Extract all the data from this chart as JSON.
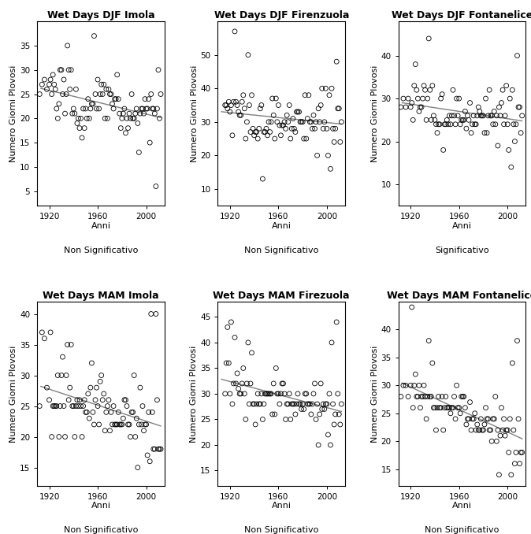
{
  "panels": [
    {
      "title": "Wet Days DJF Imola",
      "xlabel": "Anni",
      "ylabel": "Numero Giorni Plovosi",
      "significance": "Non Significativo",
      "ylim": [
        2,
        40
      ],
      "yticks": [
        5,
        10,
        15,
        20,
        25,
        30,
        35
      ],
      "xlim": [
        1910,
        2015
      ],
      "xticks": [
        1920,
        1960,
        2000
      ],
      "x": [
        1912,
        1914,
        1916,
        1918,
        1920,
        1921,
        1922,
        1923,
        1924,
        1925,
        1926,
        1927,
        1928,
        1929,
        1930,
        1931,
        1932,
        1933,
        1934,
        1935,
        1936,
        1937,
        1938,
        1939,
        1940,
        1941,
        1942,
        1943,
        1944,
        1945,
        1946,
        1947,
        1948,
        1949,
        1950,
        1951,
        1952,
        1953,
        1954,
        1955,
        1956,
        1957,
        1958,
        1959,
        1960,
        1961,
        1962,
        1963,
        1964,
        1965,
        1966,
        1967,
        1968,
        1969,
        1970,
        1971,
        1972,
        1973,
        1974,
        1975,
        1976,
        1977,
        1978,
        1979,
        1980,
        1981,
        1982,
        1983,
        1984,
        1985,
        1986,
        1987,
        1988,
        1989,
        1990,
        1991,
        1992,
        1993,
        1994,
        1995,
        1996,
        1997,
        1998,
        1999,
        2000,
        2001,
        2002,
        2003,
        2004,
        2005,
        2006,
        2007,
        2008,
        2009,
        2010,
        2011,
        2012
      ],
      "y": [
        25,
        27,
        28,
        26,
        27,
        28,
        25,
        29,
        27,
        26,
        22,
        20,
        23,
        30,
        30,
        25,
        28,
        21,
        25,
        35,
        30,
        26,
        30,
        21,
        22,
        21,
        26,
        19,
        20,
        18,
        20,
        16,
        22,
        18,
        22,
        20,
        24,
        20,
        22,
        23,
        23,
        37,
        25,
        22,
        28,
        22,
        25,
        27,
        25,
        27,
        20,
        26,
        20,
        26,
        25,
        25,
        23,
        22,
        24,
        24,
        29,
        24,
        21,
        18,
        20,
        21,
        22,
        17,
        20,
        18,
        21,
        20,
        25,
        20,
        20,
        21,
        22,
        19,
        13,
        21,
        22,
        22,
        21,
        24,
        22,
        22,
        24,
        15,
        25,
        22,
        22,
        21,
        6,
        22,
        30,
        20,
        25
      ]
    },
    {
      "title": "Wet Days DJF Firenzuola",
      "xlabel": "Anni",
      "ylabel": "Numero Giorni Plovosi",
      "significance": "Non Significativo",
      "ylim": [
        5,
        60
      ],
      "yticks": [
        10,
        20,
        30,
        40,
        50
      ],
      "xlim": [
        1910,
        2015
      ],
      "xticks": [
        1920,
        1960,
        2000
      ],
      "x": [
        1916,
        1917,
        1918,
        1919,
        1920,
        1921,
        1922,
        1923,
        1924,
        1925,
        1926,
        1927,
        1928,
        1929,
        1930,
        1931,
        1932,
        1933,
        1934,
        1935,
        1936,
        1937,
        1938,
        1939,
        1940,
        1941,
        1942,
        1943,
        1944,
        1945,
        1946,
        1947,
        1948,
        1949,
        1950,
        1951,
        1952,
        1953,
        1954,
        1955,
        1956,
        1957,
        1958,
        1959,
        1960,
        1961,
        1962,
        1963,
        1964,
        1965,
        1966,
        1967,
        1968,
        1969,
        1970,
        1971,
        1972,
        1973,
        1974,
        1975,
        1976,
        1977,
        1978,
        1979,
        1980,
        1981,
        1982,
        1983,
        1984,
        1985,
        1986,
        1987,
        1988,
        1989,
        1990,
        1991,
        1992,
        1993,
        1994,
        1995,
        1996,
        1997,
        1998,
        1999,
        2000,
        2001,
        2002,
        2003,
        2004,
        2005,
        2006,
        2007,
        2008,
        2009,
        2010,
        2011,
        2012
      ],
      "y": [
        35,
        35,
        34,
        36,
        33,
        35,
        26,
        36,
        57,
        36,
        35,
        33,
        32,
        32,
        36,
        38,
        34,
        25,
        30,
        50,
        35,
        27,
        38,
        28,
        26,
        27,
        27,
        25,
        28,
        34,
        35,
        13,
        27,
        27,
        28,
        26,
        30,
        27,
        30,
        37,
        32,
        25,
        37,
        30,
        35,
        29,
        26,
        29,
        29,
        30,
        28,
        32,
        30,
        35,
        25,
        28,
        31,
        28,
        27,
        33,
        33,
        33,
        30,
        30,
        30,
        25,
        38,
        25,
        31,
        38,
        30,
        30,
        28,
        32,
        28,
        30,
        20,
        34,
        30,
        35,
        40,
        28,
        30,
        40,
        28,
        20,
        38,
        16,
        40,
        28,
        24,
        28,
        48,
        34,
        34,
        24,
        30
      ]
    },
    {
      "title": "Wet Days DJF Fontanelice",
      "xlabel": "Anni",
      "ylabel": "Numero Giorni Plovosi",
      "significance": "Significativo",
      "ylim": [
        5,
        48
      ],
      "yticks": [
        10,
        20,
        30,
        40
      ],
      "xlim": [
        1910,
        2015
      ],
      "xticks": [
        1920,
        1960,
        2000
      ],
      "x": [
        1912,
        1914,
        1916,
        1918,
        1920,
        1921,
        1922,
        1923,
        1924,
        1925,
        1926,
        1927,
        1928,
        1929,
        1930,
        1931,
        1932,
        1933,
        1934,
        1935,
        1936,
        1937,
        1938,
        1939,
        1940,
        1941,
        1942,
        1943,
        1944,
        1945,
        1946,
        1947,
        1948,
        1949,
        1950,
        1951,
        1952,
        1953,
        1954,
        1955,
        1956,
        1957,
        1958,
        1959,
        1960,
        1961,
        1962,
        1963,
        1964,
        1965,
        1966,
        1967,
        1968,
        1969,
        1970,
        1971,
        1972,
        1973,
        1974,
        1975,
        1976,
        1977,
        1978,
        1979,
        1980,
        1981,
        1982,
        1983,
        1984,
        1985,
        1986,
        1987,
        1988,
        1989,
        1990,
        1991,
        1992,
        1993,
        1994,
        1995,
        1996,
        1997,
        1998,
        1999,
        2000,
        2001,
        2002,
        2003,
        2004,
        2005,
        2006,
        2007,
        2008,
        2009,
        2010,
        2011,
        2012
      ],
      "y": [
        28,
        30,
        28,
        30,
        28,
        29,
        25,
        33,
        38,
        32,
        30,
        27,
        28,
        28,
        30,
        33,
        32,
        25,
        30,
        44,
        32,
        25,
        33,
        26,
        25,
        24,
        22,
        24,
        24,
        30,
        31,
        18,
        24,
        24,
        25,
        24,
        26,
        24,
        26,
        32,
        26,
        24,
        30,
        26,
        30,
        24,
        25,
        25,
        25,
        27,
        23,
        26,
        25,
        29,
        22,
        24,
        26,
        24,
        24,
        26,
        28,
        27,
        26,
        26,
        26,
        22,
        30,
        22,
        26,
        32,
        26,
        26,
        24,
        27,
        24,
        26,
        19,
        28,
        26,
        29,
        32,
        24,
        26,
        33,
        24,
        18,
        30,
        14,
        32,
        24,
        20,
        24,
        40,
        28,
        28,
        22,
        26
      ]
    },
    {
      "title": "Wet Days MAM Imola",
      "xlabel": "Anni",
      "ylabel": "Numero Giorni Plovosi",
      "significance": "Non Significativo",
      "ylim": [
        12,
        42
      ],
      "yticks": [
        15,
        20,
        25,
        30,
        35,
        40
      ],
      "xlim": [
        1910,
        2015
      ],
      "xticks": [
        1920,
        1960,
        2000
      ],
      "x": [
        1912,
        1914,
        1916,
        1918,
        1920,
        1921,
        1922,
        1923,
        1924,
        1925,
        1926,
        1927,
        1928,
        1929,
        1930,
        1931,
        1932,
        1933,
        1934,
        1935,
        1936,
        1937,
        1938,
        1939,
        1940,
        1941,
        1942,
        1943,
        1944,
        1945,
        1946,
        1947,
        1948,
        1949,
        1950,
        1951,
        1952,
        1953,
        1954,
        1955,
        1956,
        1957,
        1958,
        1959,
        1960,
        1961,
        1962,
        1963,
        1964,
        1965,
        1966,
        1967,
        1968,
        1969,
        1970,
        1971,
        1972,
        1973,
        1974,
        1975,
        1976,
        1977,
        1978,
        1979,
        1980,
        1981,
        1982,
        1983,
        1984,
        1985,
        1986,
        1987,
        1988,
        1989,
        1990,
        1991,
        1992,
        1993,
        1994,
        1995,
        1996,
        1997,
        1998,
        1999,
        2000,
        2001,
        2002,
        2003,
        2004,
        2005,
        2006,
        2007,
        2008,
        2009,
        2010,
        2011,
        2012
      ],
      "y": [
        25,
        37,
        36,
        28,
        26,
        37,
        20,
        25,
        25,
        25,
        25,
        30,
        20,
        25,
        30,
        33,
        25,
        20,
        30,
        35,
        26,
        28,
        35,
        25,
        25,
        20,
        25,
        26,
        25,
        26,
        25,
        20,
        25,
        26,
        24,
        24,
        27,
        23,
        28,
        32,
        24,
        22,
        26,
        28,
        25,
        22,
        29,
        30,
        26,
        27,
        21,
        24,
        25,
        26,
        21,
        24,
        22,
        25,
        22,
        22,
        22,
        24,
        22,
        22,
        22,
        23,
        26,
        26,
        25,
        22,
        22,
        20,
        24,
        24,
        30,
        20,
        23,
        15,
        22,
        28,
        22,
        25,
        21,
        22,
        22,
        17,
        24,
        16,
        40,
        24,
        18,
        18,
        40,
        26,
        18,
        18,
        18
      ]
    },
    {
      "title": "Wet Days MAM Firezuola",
      "xlabel": "Anni",
      "ylabel": "Numero Giorni Plovosi",
      "significance": "Non Significativo",
      "ylim": [
        12,
        48
      ],
      "yticks": [
        15,
        20,
        25,
        30,
        35,
        40,
        45
      ],
      "xlim": [
        1910,
        2015
      ],
      "xticks": [
        1920,
        1960,
        2000
      ],
      "x": [
        1916,
        1917,
        1918,
        1919,
        1920,
        1921,
        1922,
        1923,
        1924,
        1925,
        1926,
        1927,
        1928,
        1929,
        1930,
        1931,
        1932,
        1933,
        1934,
        1935,
        1936,
        1937,
        1938,
        1939,
        1940,
        1941,
        1942,
        1943,
        1944,
        1945,
        1946,
        1947,
        1948,
        1949,
        1950,
        1951,
        1952,
        1953,
        1954,
        1955,
        1956,
        1957,
        1958,
        1959,
        1960,
        1961,
        1962,
        1963,
        1964,
        1965,
        1966,
        1967,
        1968,
        1969,
        1970,
        1971,
        1972,
        1973,
        1974,
        1975,
        1976,
        1977,
        1978,
        1979,
        1980,
        1981,
        1982,
        1983,
        1984,
        1985,
        1986,
        1987,
        1988,
        1989,
        1990,
        1991,
        1992,
        1993,
        1994,
        1995,
        1996,
        1997,
        1998,
        1999,
        2000,
        2001,
        2002,
        2003,
        2004,
        2005,
        2006,
        2007,
        2008,
        2009,
        2010,
        2011,
        2012
      ],
      "y": [
        30,
        36,
        43,
        36,
        30,
        44,
        28,
        32,
        41,
        32,
        34,
        31,
        30,
        30,
        32,
        35,
        30,
        25,
        32,
        40,
        28,
        32,
        38,
        28,
        28,
        24,
        28,
        30,
        28,
        28,
        30,
        25,
        28,
        30,
        30,
        30,
        30,
        30,
        30,
        26,
        32,
        26,
        35,
        30,
        30,
        28,
        30,
        32,
        32,
        30,
        25,
        28,
        28,
        30,
        25,
        28,
        28,
        28,
        26,
        28,
        30,
        28,
        28,
        27,
        28,
        27,
        30,
        30,
        28,
        28,
        28,
        26,
        28,
        30,
        32,
        25,
        28,
        20,
        26,
        32,
        27,
        28,
        27,
        28,
        28,
        22,
        30,
        20,
        40,
        28,
        24,
        26,
        44,
        30,
        26,
        24,
        28
      ]
    },
    {
      "title": "Wet Days MAM Fontanelice",
      "xlabel": "Anni",
      "ylabel": "Numero Giorni Plovosi",
      "significance": "Non Significativo",
      "ylim": [
        12,
        45
      ],
      "yticks": [
        15,
        20,
        25,
        30,
        35,
        40
      ],
      "xlim": [
        1910,
        2015
      ],
      "xticks": [
        1920,
        1960,
        2000
      ],
      "x": [
        1912,
        1914,
        1916,
        1918,
        1920,
        1921,
        1922,
        1923,
        1924,
        1925,
        1926,
        1927,
        1928,
        1929,
        1930,
        1931,
        1932,
        1933,
        1934,
        1935,
        1936,
        1937,
        1938,
        1939,
        1940,
        1941,
        1942,
        1943,
        1944,
        1945,
        1946,
        1947,
        1948,
        1949,
        1950,
        1951,
        1952,
        1953,
        1954,
        1955,
        1956,
        1957,
        1958,
        1959,
        1960,
        1961,
        1962,
        1963,
        1964,
        1965,
        1966,
        1967,
        1968,
        1969,
        1970,
        1971,
        1972,
        1973,
        1974,
        1975,
        1976,
        1977,
        1978,
        1979,
        1980,
        1981,
        1982,
        1983,
        1984,
        1985,
        1986,
        1987,
        1988,
        1989,
        1990,
        1991,
        1992,
        1993,
        1994,
        1995,
        1996,
        1997,
        1998,
        1999,
        2000,
        2001,
        2002,
        2003,
        2004,
        2005,
        2006,
        2007,
        2008,
        2009,
        2010,
        2011,
        2012
      ],
      "y": [
        28,
        30,
        30,
        28,
        30,
        44,
        26,
        30,
        32,
        28,
        28,
        30,
        26,
        28,
        28,
        30,
        28,
        24,
        28,
        38,
        28,
        28,
        34,
        26,
        26,
        22,
        26,
        28,
        26,
        26,
        28,
        22,
        26,
        28,
        26,
        26,
        26,
        25,
        26,
        26,
        28,
        24,
        30,
        26,
        26,
        25,
        28,
        28,
        28,
        26,
        23,
        24,
        24,
        27,
        22,
        24,
        24,
        25,
        22,
        23,
        22,
        22,
        24,
        22,
        22,
        23,
        26,
        24,
        24,
        22,
        22,
        20,
        24,
        24,
        28,
        20,
        22,
        14,
        21,
        26,
        22,
        24,
        21,
        22,
        22,
        18,
        24,
        14,
        34,
        22,
        16,
        18,
        38,
        24,
        16,
        18,
        18
      ]
    }
  ],
  "figure_bgcolor": "#ffffff",
  "axes_facecolor": "#ffffff",
  "marker_color": "black",
  "marker_size": 18,
  "line_color": "#808080",
  "line_width": 1.0,
  "title_fontsize": 9,
  "label_fontsize": 8,
  "tick_fontsize": 7.5,
  "sig_fontsize": 8
}
